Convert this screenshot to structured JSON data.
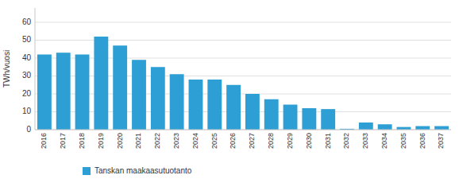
{
  "chart_data": {
    "type": "bar",
    "y_label": "TWh/vuosi",
    "categories": [
      "2016",
      "2017",
      "2018",
      "2019",
      "2020",
      "2021",
      "2022",
      "2023",
      "2024",
      "2025",
      "2026",
      "2027",
      "2028",
      "2029",
      "2030",
      "2031",
      "2032",
      "2033",
      "2034",
      "2035",
      "2036",
      "2037"
    ],
    "series": [
      {
        "name": "Tanskan maakaasutuotanto",
        "color": "#2e9fd4",
        "values": [
          42,
          43,
          42,
          52,
          47,
          39,
          35,
          31,
          28,
          28,
          25,
          20,
          17,
          14,
          12,
          11.5,
          0.5,
          4,
          3,
          1.5,
          2,
          2
        ]
      }
    ],
    "ylim": [
      0,
      68
    ],
    "yticks": [
      0,
      10,
      20,
      30,
      40,
      50,
      60
    ],
    "grid": true,
    "legend": "bottom"
  }
}
